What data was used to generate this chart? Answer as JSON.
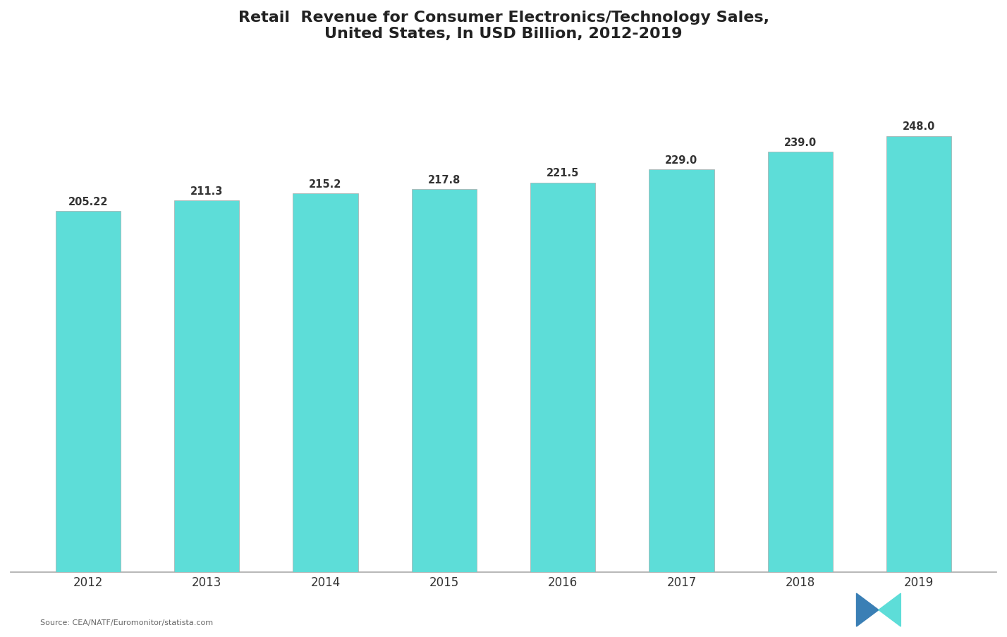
{
  "title_line1": "Retail  Revenue for Consumer Electronics/Technology Sales,",
  "title_line2": "United States, In USD Billion, 2012-2019",
  "categories": [
    "2012",
    "2013",
    "2014",
    "2015",
    "2016",
    "2017",
    "2018",
    "2019"
  ],
  "values": [
    205.22,
    211.3,
    215.2,
    217.8,
    221.5,
    229.0,
    239.0,
    248.0
  ],
  "bar_color": "#5DDDD8",
  "bar_edge_color": "#aaaaaa",
  "label_values": [
    "205.22",
    "211.3",
    "215.2",
    "217.8",
    "221.5",
    "229.0",
    "239.0",
    "248.0"
  ],
  "background_color": "#ffffff",
  "plot_bg_color": "#ffffff",
  "text_color": "#333333",
  "title_color": "#222222",
  "source_text": "Source: CEA/NATF/Euromonitor/statista.com",
  "ylim": [
    0,
    290
  ],
  "ylabel": "",
  "xlabel": ""
}
